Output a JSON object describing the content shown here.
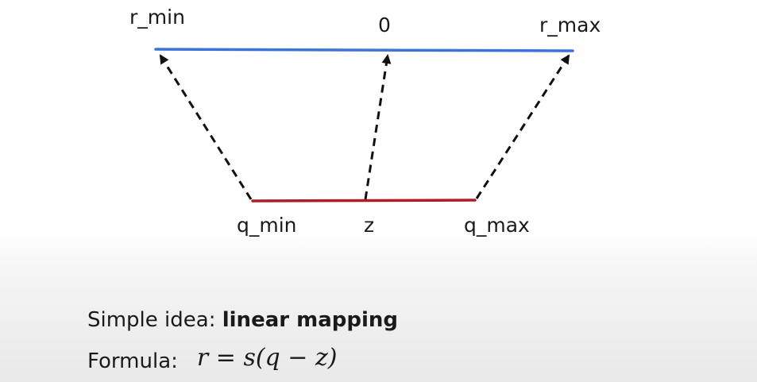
{
  "diagram": {
    "real_range": {
      "min_label": "r_min",
      "zero_label": "0",
      "max_label": "r_max",
      "line_color": "#3b74d8"
    },
    "quantized_range": {
      "min_label": "q_min",
      "zero_point_label": "z",
      "max_label": "q_max",
      "line_color": "#b01c22"
    },
    "arrow_color": "#111111"
  },
  "caption": {
    "idea_prefix": "Simple idea: ",
    "idea_bold": "linear mapping",
    "formula_prefix": "Formula:",
    "formula_math": "r = s(q − z)"
  }
}
